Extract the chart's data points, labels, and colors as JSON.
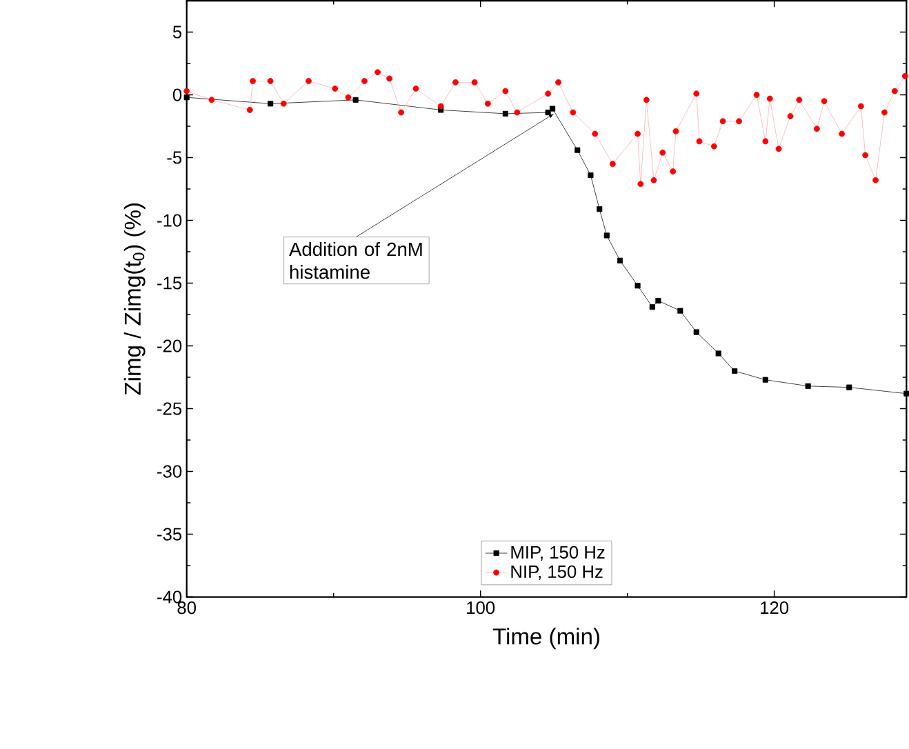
{
  "chart_data": {
    "type": "line",
    "xlabel": "Time (min)",
    "ylabel": "Zimg / Zimg(t$_{0}$) (%)",
    "xlim": [
      80,
      129
    ],
    "ylim": [
      -40,
      7.5
    ],
    "xticks": [
      80,
      100,
      120
    ],
    "yticks": [
      -40,
      -35,
      -30,
      -25,
      -20,
      -15,
      -10,
      -5,
      0,
      5
    ],
    "legend": "bottom",
    "grid": false,
    "line_style": "solid",
    "annotations": [
      {
        "text": "Addition of 2nM histamine",
        "x": 105,
        "y": -1.5
      }
    ],
    "series": [
      {
        "name": "MIP, 150 Hz",
        "color": "#000000",
        "marker": "square",
        "x": [
          80,
          85.7,
          91.5,
          97.3,
          101.7,
          104.6,
          104.9,
          106.6,
          107.5,
          108.1,
          108.6,
          109.5,
          110.7,
          111.7,
          112.1,
          113.6,
          114.7,
          116.2,
          117.3,
          119.4,
          122.3,
          125.1,
          129
        ],
        "values": [
          -0.2,
          -0.7,
          -0.4,
          -1.2,
          -1.5,
          -1.4,
          -1.1,
          -4.4,
          -6.4,
          -9.1,
          -11.2,
          -13.2,
          -15.2,
          -16.9,
          -16.4,
          -17.2,
          -18.9,
          -20.6,
          -22,
          -22.7,
          -23.2,
          -23.3,
          -23.8
        ]
      },
      {
        "name": "NIP, 150 Hz",
        "color": "#ff0000",
        "marker": "circle",
        "x": [
          80,
          81.7,
          84.3,
          84.5,
          85.7,
          86.6,
          88.3,
          90.1,
          91,
          92.1,
          93,
          93.8,
          94.6,
          95.6,
          97.3,
          98.3,
          99.6,
          100.5,
          101.7,
          102.5,
          104.6,
          105.3,
          106.3,
          107.8,
          109,
          110.7,
          110.9,
          111.3,
          111.8,
          112.4,
          113.1,
          113.3,
          114.7,
          114.9,
          115.9,
          116.5,
          117.6,
          118.8,
          119.4,
          119.7,
          120.3,
          121.1,
          121.7,
          122.9,
          123.4,
          124.6,
          125.9,
          126.2,
          126.9,
          127.5,
          128.2,
          128.9
        ],
        "values": [
          0.3,
          -0.4,
          -1.2,
          1.1,
          1.1,
          -0.7,
          1.1,
          0.5,
          -0.2,
          1.1,
          1.8,
          1.3,
          -1.4,
          0.5,
          -0.9,
          1.0,
          1.0,
          -0.7,
          0.3,
          -1.4,
          0.1,
          1.0,
          -1.4,
          -3.1,
          -5.5,
          -3.1,
          -7.1,
          -0.4,
          -6.8,
          -4.6,
          -6.1,
          -2.9,
          0.1,
          -3.7,
          -4.1,
          -2.1,
          -2.1,
          0,
          -3.7,
          -0.3,
          -4.3,
          -1.7,
          -0.4,
          -2.7,
          -0.5,
          -3.1,
          -0.9,
          -4.8,
          -6.8,
          -1.4,
          0.3,
          1.5
        ]
      }
    ]
  }
}
